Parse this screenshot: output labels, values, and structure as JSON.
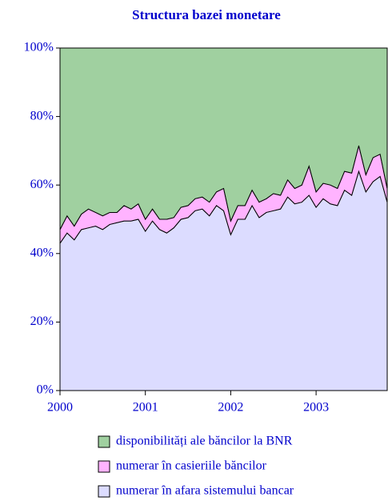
{
  "chart_data": {
    "type": "stacked_area",
    "title": "Structura bazei monetare",
    "x": [
      2000,
      2000.083,
      2000.167,
      2000.25,
      2000.333,
      2000.417,
      2000.5,
      2000.583,
      2000.667,
      2000.75,
      2000.833,
      2000.917,
      2001,
      2001.083,
      2001.167,
      2001.25,
      2001.333,
      2001.417,
      2001.5,
      2001.583,
      2001.667,
      2001.75,
      2001.833,
      2001.917,
      2002,
      2002.083,
      2002.167,
      2002.25,
      2002.333,
      2002.417,
      2002.5,
      2002.583,
      2002.667,
      2002.75,
      2002.833,
      2002.917,
      2003,
      2003.083,
      2003.167,
      2003.25,
      2003.333,
      2003.417,
      2003.5,
      2003.583,
      2003.667,
      2003.75,
      2003.833
    ],
    "series": [
      {
        "name": "disponibilități ale băncilor la BNR",
        "color": "#a0d0a0",
        "values": [
          53,
          49,
          52,
          48.5,
          47,
          48,
          49,
          48,
          48,
          46,
          47,
          45.5,
          50,
          47,
          50,
          50,
          49.5,
          46.5,
          46,
          44,
          43.5,
          45,
          42,
          41,
          50.5,
          46,
          46,
          41.5,
          45,
          44,
          42.5,
          43,
          38.5,
          41,
          40,
          34.5,
          42,
          39.5,
          40,
          41,
          36,
          36.5,
          28.5,
          37,
          32,
          31,
          41
        ]
      },
      {
        "name": "numerar în casieriile băncilor",
        "color": "#ffb3ff",
        "values": [
          4,
          5,
          4,
          4.5,
          5.5,
          4,
          4,
          3.5,
          3,
          4.5,
          3.5,
          4.5,
          3.5,
          3.5,
          3,
          4,
          3,
          3.5,
          3.5,
          3.5,
          3.5,
          4,
          4,
          6.5,
          4,
          4,
          4,
          4.5,
          4.5,
          4,
          5,
          4,
          5,
          4.5,
          5,
          8.5,
          4.5,
          4.5,
          5.5,
          5,
          5.5,
          6.5,
          7.5,
          5,
          7,
          6.5,
          4
        ]
      },
      {
        "name": "numerar în afara sistemului bancar",
        "color": "#dcdcff",
        "values": [
          43,
          46,
          44,
          47,
          47.5,
          48,
          47,
          48.5,
          49,
          49.5,
          49.5,
          50,
          46.5,
          49.5,
          47,
          46,
          47.5,
          50,
          50.5,
          52.5,
          53,
          51,
          54,
          52.5,
          45.5,
          50,
          50,
          54,
          50.5,
          52,
          52.5,
          53,
          56.5,
          54.5,
          55,
          57,
          53.5,
          56,
          54.5,
          54,
          58.5,
          57,
          64,
          58,
          61,
          62.5,
          55
        ]
      }
    ],
    "xlim": [
      2000,
      2003.833
    ],
    "xticks": [
      2000,
      2001,
      2002,
      2003
    ],
    "ylim": [
      0,
      100
    ],
    "yticks": [
      {
        "value": 0,
        "label": "0%"
      },
      {
        "value": 20,
        "label": "20%"
      },
      {
        "value": 40,
        "label": "40%"
      },
      {
        "value": 60,
        "label": "60%"
      },
      {
        "value": 80,
        "label": "80%"
      },
      {
        "value": 100,
        "label": "100%"
      }
    ]
  }
}
